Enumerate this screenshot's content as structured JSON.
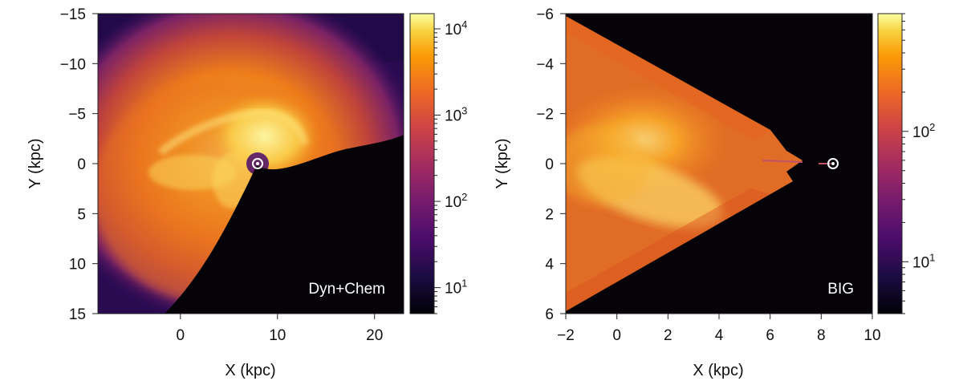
{
  "chart_data": [
    {
      "type": "heatmap",
      "panel_label": "Dyn+Chem",
      "xlabel": "X (kpc)",
      "ylabel": "Y (kpc)",
      "xlim": [
        -8.5,
        23
      ],
      "ylim": [
        -15,
        15
      ],
      "y_inverted": true,
      "x_ticks": [
        0,
        10,
        20
      ],
      "x_tick_labels": [
        "0",
        "10",
        "20"
      ],
      "y_ticks": [
        -15,
        -10,
        -5,
        0,
        5,
        10,
        15
      ],
      "y_tick_labels": [
        "−15",
        "−10",
        "−5",
        "0",
        "5",
        "10",
        "15"
      ],
      "colorbar": {
        "scale": "log",
        "range": [
          5,
          15000
        ],
        "major_ticks": [
          10,
          100,
          1000,
          10000
        ],
        "major_tick_labels": [
          "10",
          "10",
          "10",
          "10"
        ],
        "major_tick_exponents": [
          "1",
          "2",
          "3",
          "4"
        ],
        "colormap": "inferno"
      },
      "sun_marker": {
        "x": 8.2,
        "y": 0
      },
      "features": {
        "empty_region": "lower-right (beyond Sun, Y > 0)",
        "bright_regions": "arc around Galactic center, X 4-12 kpc, Y -6 to 2 kpc"
      }
    },
    {
      "type": "heatmap",
      "panel_label": "BIG",
      "xlabel": "X (kpc)",
      "ylabel": "Y (kpc)",
      "xlim": [
        -2,
        10
      ],
      "ylim": [
        -6,
        6
      ],
      "y_inverted": true,
      "x_ticks": [
        -2,
        0,
        2,
        4,
        6,
        8,
        10
      ],
      "x_tick_labels": [
        "−2",
        "0",
        "2",
        "4",
        "6",
        "8",
        "10"
      ],
      "y_ticks": [
        -6,
        -4,
        -2,
        0,
        2,
        4,
        6
      ],
      "y_tick_labels": [
        "−6",
        "−4",
        "−2",
        "0",
        "2",
        "4",
        "6"
      ],
      "colorbar": {
        "scale": "log",
        "range": [
          4,
          800
        ],
        "major_ticks": [
          10,
          100
        ],
        "major_tick_labels": [
          "10",
          "10"
        ],
        "major_tick_exponents": [
          "1",
          "2"
        ],
        "colormap": "inferno"
      },
      "sun_marker": {
        "x": 8.4,
        "y": 0
      },
      "features": {
        "coverage": "wedge opening toward X = -2 from apex near X = 6",
        "bright_regions": "band from X 0 to 4 kpc, Y 0 to 2 kpc"
      }
    }
  ]
}
